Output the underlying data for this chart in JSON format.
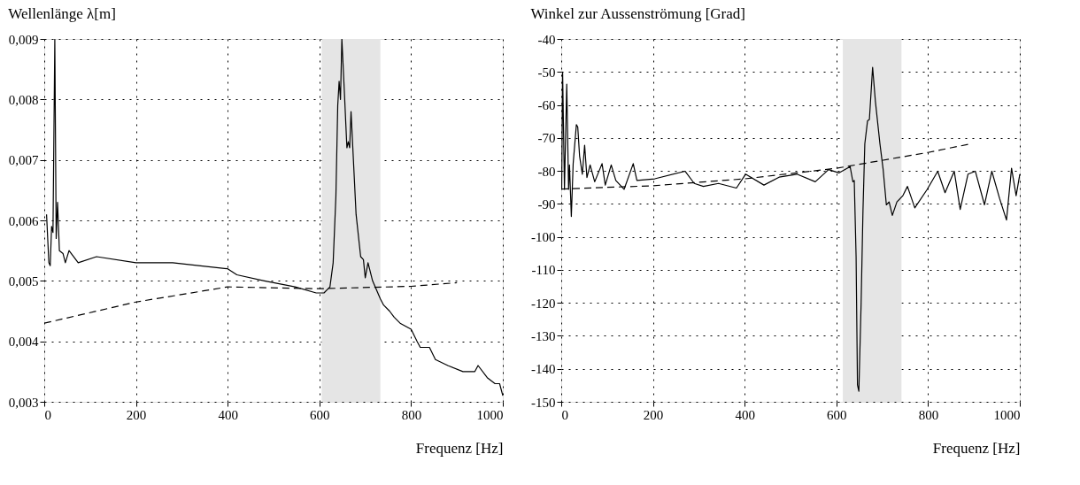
{
  "chart_data": [
    {
      "type": "line",
      "title": "Wellenlänge λ[m]",
      "xlabel": "Frequenz [Hz]",
      "grid": true,
      "marker": "none",
      "xlim": [
        0,
        1000
      ],
      "xticks": [
        0,
        200,
        400,
        600,
        800,
        1000
      ],
      "ylim": [
        0.003,
        0.009
      ],
      "yticks": [
        {
          "value": 0.003,
          "label": "0,003"
        },
        {
          "value": 0.004,
          "label": "0,004"
        },
        {
          "value": 0.005,
          "label": "0,005"
        },
        {
          "value": 0.006,
          "label": "0,006"
        },
        {
          "value": 0.007,
          "label": "0,007"
        },
        {
          "value": 0.008,
          "label": "0,008"
        },
        {
          "value": 0.009,
          "label": "0,009"
        }
      ],
      "bands": [
        {
          "axis": "x",
          "from": 605,
          "to": 733,
          "color": "#e5e5e5"
        }
      ],
      "series": [
        {
          "color": "#000000",
          "line_style": "solid",
          "x": [
            5,
            10,
            13,
            16,
            19,
            23,
            26,
            29,
            33,
            41,
            46,
            54,
            74,
            114,
            200,
            280,
            400,
            420,
            480,
            547,
            593,
            610,
            623,
            630,
            636,
            640,
            643,
            646,
            649,
            654,
            660,
            663,
            666,
            669,
            680,
            690,
            696,
            700,
            706,
            716,
            733,
            740,
            753,
            763,
            776,
            800,
            813,
            820,
            840,
            853,
            880,
            913,
            939,
            946,
            966,
            983,
            993,
            1000
          ],
          "values": [
            0.0061,
            0.0053,
            0.00525,
            0.0059,
            0.0058,
            0.009,
            0.0057,
            0.0063,
            0.0055,
            0.00545,
            0.0053,
            0.0055,
            0.0053,
            0.0054,
            0.0053,
            0.0053,
            0.0052,
            0.0051,
            0.005,
            0.0049,
            0.0048,
            0.0048,
            0.0049,
            0.0053,
            0.0064,
            0.0079,
            0.0083,
            0.008,
            0.009,
            0.0082,
            0.0072,
            0.0073,
            0.0072,
            0.0078,
            0.0061,
            0.0054,
            0.00535,
            0.00505,
            0.0053,
            0.005,
            0.0047,
            0.0046,
            0.0045,
            0.0044,
            0.0043,
            0.0042,
            0.004,
            0.0039,
            0.0039,
            0.0037,
            0.0036,
            0.0035,
            0.0035,
            0.0036,
            0.0034,
            0.0033,
            0.0033,
            0.0031
          ]
        },
        {
          "color": "#000000",
          "line_style": "dashed",
          "x": [
            0,
            200,
            400,
            600,
            800,
            900
          ],
          "values": [
            0.0043,
            0.00465,
            0.0049,
            0.00487,
            0.00491,
            0.00497
          ]
        }
      ]
    },
    {
      "type": "line",
      "title": "Winkel zur Aussenströmung [Grad]",
      "xlabel": "Frequenz [Hz]",
      "grid": true,
      "marker": "none",
      "xlim": [
        0,
        1000
      ],
      "xticks": [
        0,
        200,
        400,
        600,
        800,
        1000
      ],
      "ylim": [
        -150,
        -40
      ],
      "yticks": [
        -150,
        -140,
        -130,
        -120,
        -110,
        -100,
        -90,
        -80,
        -70,
        -60,
        -50,
        -40
      ],
      "bands": [
        {
          "axis": "x",
          "from": 614,
          "to": 742,
          "color": "#e5e5e5"
        }
      ],
      "series": [
        {
          "color": "#000000",
          "line_style": "solid",
          "x": [
            1,
            3,
            7,
            12,
            16,
            18,
            22,
            26,
            33,
            36,
            40,
            46,
            51,
            56,
            63,
            73,
            89,
            96,
            109,
            119,
            137,
            157,
            165,
            204,
            270,
            290,
            310,
            343,
            382,
            402,
            442,
            475,
            514,
            554,
            583,
            606,
            630,
            636,
            639,
            643,
            646,
            649,
            654,
            658,
            662,
            668,
            672,
            679,
            685,
            695,
            702,
            709,
            715,
            722,
            732,
            745,
            755,
            771,
            798,
            821,
            837,
            857,
            870,
            887,
            903,
            923,
            939,
            956,
            971,
            982,
            992,
            1000
          ],
          "values": [
            -85.6,
            -50,
            -85.6,
            -53.7,
            -85.6,
            -78.2,
            -93.8,
            -77.8,
            -66,
            -66.7,
            -75.5,
            -81,
            -72.2,
            -82,
            -78.2,
            -83.3,
            -77.8,
            -84.3,
            -78.2,
            -82.9,
            -85.6,
            -77.8,
            -82.9,
            -82.4,
            -80.1,
            -83.8,
            -84.7,
            -83.8,
            -85.2,
            -81,
            -84.3,
            -81.9,
            -81,
            -83.3,
            -79.6,
            -80.6,
            -78.7,
            -83.3,
            -82.9,
            -106,
            -144.9,
            -146.8,
            -119.9,
            -92.1,
            -71.8,
            -64.8,
            -64.4,
            -48.6,
            -58.8,
            -71.8,
            -79.6,
            -90.3,
            -89.4,
            -93.5,
            -89.4,
            -87.5,
            -84.7,
            -91.2,
            -85.6,
            -80.1,
            -86.6,
            -80.1,
            -91.7,
            -81,
            -80.1,
            -90.3,
            -80.1,
            -88.4,
            -94.9,
            -79.2,
            -87.5,
            -81
          ]
        },
        {
          "color": "#000000",
          "line_style": "dashed",
          "x": [
            0,
            200,
            400,
            600,
            800,
            893
          ],
          "values": [
            -85.5,
            -84.5,
            -82.4,
            -79.2,
            -74.4,
            -71.8
          ]
        }
      ]
    }
  ]
}
